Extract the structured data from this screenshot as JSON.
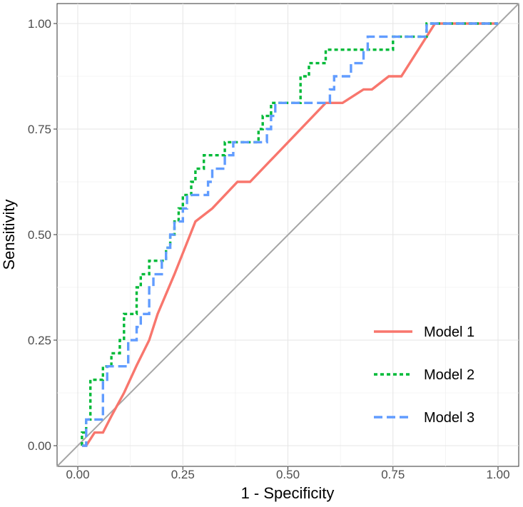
{
  "chart_data": {
    "type": "line",
    "title": "",
    "xlabel": "1 - Specificity",
    "ylabel": "Sensitivity",
    "xlim": [
      0,
      1
    ],
    "ylim": [
      0,
      1
    ],
    "x_ticks": [
      "0.00",
      "0.25",
      "0.50",
      "0.75",
      "1.00"
    ],
    "y_ticks": [
      "0.00",
      "0.25",
      "0.50",
      "0.75",
      "1.00"
    ],
    "grid": true,
    "legend_position": "bottom-right",
    "reference_line": {
      "x": [
        0,
        1
      ],
      "y": [
        0,
        1
      ],
      "color": "#a6a6a6"
    },
    "series": [
      {
        "name": "Model 1",
        "color": "#F8766D",
        "dash": "solid",
        "points": [
          [
            0.01,
            0
          ],
          [
            0.02,
            0
          ],
          [
            0.04,
            0.031
          ],
          [
            0.06,
            0.031
          ],
          [
            0.08,
            0.07
          ],
          [
            0.11,
            0.125
          ],
          [
            0.14,
            0.19
          ],
          [
            0.17,
            0.25
          ],
          [
            0.19,
            0.312
          ],
          [
            0.23,
            0.406
          ],
          [
            0.28,
            0.531
          ],
          [
            0.32,
            0.562
          ],
          [
            0.38,
            0.625
          ],
          [
            0.41,
            0.625
          ],
          [
            0.59,
            0.812
          ],
          [
            0.63,
            0.812
          ],
          [
            0.68,
            0.844
          ],
          [
            0.7,
            0.844
          ],
          [
            0.74,
            0.875
          ],
          [
            0.77,
            0.875
          ],
          [
            0.85,
            1.0
          ],
          [
            1.0,
            1.0
          ]
        ]
      },
      {
        "name": "Model 2",
        "color": "#00BA38",
        "dash": "dotted",
        "points": [
          [
            0.01,
            0
          ],
          [
            0.01,
            0.031
          ],
          [
            0.02,
            0.031
          ],
          [
            0.02,
            0.062
          ],
          [
            0.03,
            0.062
          ],
          [
            0.03,
            0.156
          ],
          [
            0.06,
            0.156
          ],
          [
            0.06,
            0.188
          ],
          [
            0.08,
            0.188
          ],
          [
            0.08,
            0.219
          ],
          [
            0.1,
            0.219
          ],
          [
            0.1,
            0.25
          ],
          [
            0.11,
            0.25
          ],
          [
            0.11,
            0.312
          ],
          [
            0.14,
            0.312
          ],
          [
            0.14,
            0.375
          ],
          [
            0.15,
            0.375
          ],
          [
            0.15,
            0.406
          ],
          [
            0.17,
            0.406
          ],
          [
            0.17,
            0.438
          ],
          [
            0.21,
            0.438
          ],
          [
            0.21,
            0.469
          ],
          [
            0.22,
            0.469
          ],
          [
            0.22,
            0.5
          ],
          [
            0.23,
            0.5
          ],
          [
            0.23,
            0.531
          ],
          [
            0.24,
            0.531
          ],
          [
            0.24,
            0.562
          ],
          [
            0.25,
            0.562
          ],
          [
            0.25,
            0.594
          ],
          [
            0.27,
            0.594
          ],
          [
            0.27,
            0.625
          ],
          [
            0.28,
            0.625
          ],
          [
            0.28,
            0.656
          ],
          [
            0.3,
            0.656
          ],
          [
            0.3,
            0.688
          ],
          [
            0.35,
            0.688
          ],
          [
            0.35,
            0.719
          ],
          [
            0.43,
            0.719
          ],
          [
            0.43,
            0.75
          ],
          [
            0.44,
            0.75
          ],
          [
            0.44,
            0.781
          ],
          [
            0.46,
            0.781
          ],
          [
            0.46,
            0.812
          ],
          [
            0.53,
            0.812
          ],
          [
            0.53,
            0.875
          ],
          [
            0.55,
            0.875
          ],
          [
            0.55,
            0.906
          ],
          [
            0.59,
            0.906
          ],
          [
            0.59,
            0.938
          ],
          [
            0.75,
            0.938
          ],
          [
            0.75,
            0.969
          ],
          [
            0.83,
            0.969
          ],
          [
            0.83,
            1.0
          ],
          [
            1.0,
            1.0
          ]
        ]
      },
      {
        "name": "Model 3",
        "color": "#619CFF",
        "dash": "dashed",
        "points": [
          [
            0.01,
            0
          ],
          [
            0.02,
            0
          ],
          [
            0.02,
            0.062
          ],
          [
            0.06,
            0.062
          ],
          [
            0.06,
            0.156
          ],
          [
            0.07,
            0.156
          ],
          [
            0.07,
            0.188
          ],
          [
            0.12,
            0.188
          ],
          [
            0.12,
            0.25
          ],
          [
            0.14,
            0.25
          ],
          [
            0.14,
            0.281
          ],
          [
            0.15,
            0.281
          ],
          [
            0.15,
            0.312
          ],
          [
            0.17,
            0.312
          ],
          [
            0.17,
            0.375
          ],
          [
            0.18,
            0.375
          ],
          [
            0.18,
            0.406
          ],
          [
            0.2,
            0.406
          ],
          [
            0.2,
            0.438
          ],
          [
            0.21,
            0.438
          ],
          [
            0.21,
            0.469
          ],
          [
            0.22,
            0.469
          ],
          [
            0.22,
            0.5
          ],
          [
            0.23,
            0.5
          ],
          [
            0.23,
            0.531
          ],
          [
            0.25,
            0.531
          ],
          [
            0.25,
            0.562
          ],
          [
            0.26,
            0.562
          ],
          [
            0.26,
            0.594
          ],
          [
            0.31,
            0.594
          ],
          [
            0.31,
            0.625
          ],
          [
            0.32,
            0.625
          ],
          [
            0.32,
            0.656
          ],
          [
            0.35,
            0.656
          ],
          [
            0.35,
            0.688
          ],
          [
            0.37,
            0.688
          ],
          [
            0.37,
            0.719
          ],
          [
            0.45,
            0.719
          ],
          [
            0.45,
            0.75
          ],
          [
            0.46,
            0.75
          ],
          [
            0.46,
            0.781
          ],
          [
            0.47,
            0.781
          ],
          [
            0.47,
            0.812
          ],
          [
            0.6,
            0.812
          ],
          [
            0.6,
            0.844
          ],
          [
            0.61,
            0.844
          ],
          [
            0.61,
            0.875
          ],
          [
            0.65,
            0.875
          ],
          [
            0.65,
            0.906
          ],
          [
            0.68,
            0.906
          ],
          [
            0.68,
            0.938
          ],
          [
            0.69,
            0.938
          ],
          [
            0.69,
            0.969
          ],
          [
            0.83,
            0.969
          ],
          [
            0.83,
            1.0
          ],
          [
            1.0,
            1.0
          ]
        ]
      }
    ]
  }
}
